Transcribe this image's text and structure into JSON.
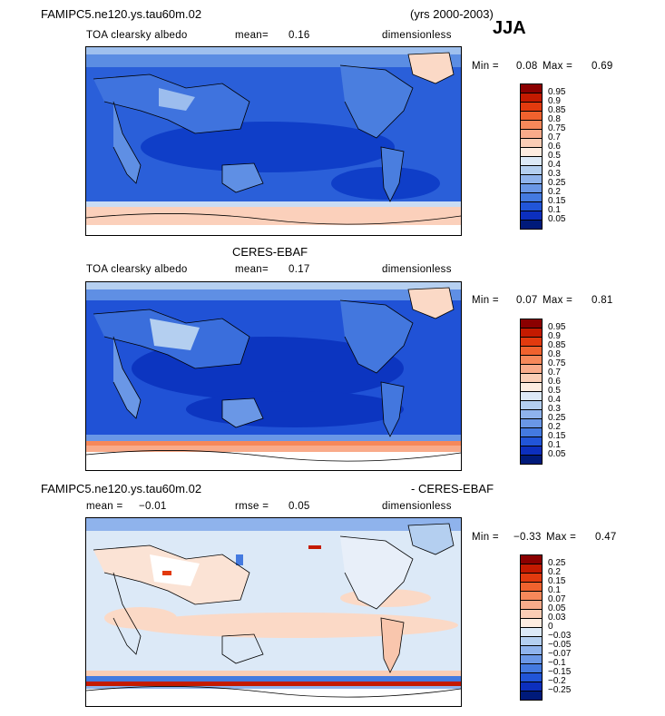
{
  "header": {
    "case_name": "FAMIPC5.ne120.ys.tau60m.02",
    "years": "(yrs 2000-2003)",
    "season": "JJA"
  },
  "panels": [
    {
      "title_center": "",
      "variable": "TOA clearsky albedo",
      "stat1_label": "mean=",
      "stat1_value": "0.16",
      "stat2_label": "",
      "stat2_value": "",
      "units": "dimensionless",
      "min_label": "Min =",
      "min_value": "0.08",
      "max_label": "Max =",
      "max_value": "0.69",
      "levels": [
        "0.95",
        "0.9",
        "0.85",
        "0.8",
        "0.75",
        "0.7",
        "0.6",
        "0.5",
        "0.4",
        "0.3",
        "0.25",
        "0.2",
        "0.15",
        "0.1",
        "0.05"
      ],
      "colors": [
        "#8b0000",
        "#c41a00",
        "#e23a0e",
        "#f0622e",
        "#f6885a",
        "#f9ab8a",
        "#fbcdb5",
        "#feece0",
        "#dce9f7",
        "#b4cff0",
        "#8fb3ec",
        "#6a97e6",
        "#447ae0",
        "#2155d8",
        "#0c2fbe",
        "#001a7a"
      ]
    },
    {
      "title_center": "CERES-EBAF",
      "variable": "TOA clearsky albedo",
      "stat1_label": "mean=",
      "stat1_value": "0.17",
      "stat2_label": "",
      "stat2_value": "",
      "units": "dimensionless",
      "min_label": "Min =",
      "min_value": "0.07",
      "max_label": "Max =",
      "max_value": "0.81",
      "levels": [
        "0.95",
        "0.9",
        "0.85",
        "0.8",
        "0.75",
        "0.7",
        "0.6",
        "0.5",
        "0.4",
        "0.3",
        "0.25",
        "0.2",
        "0.15",
        "0.1",
        "0.05"
      ],
      "colors": [
        "#8b0000",
        "#c41a00",
        "#e23a0e",
        "#f0622e",
        "#f6885a",
        "#f9ab8a",
        "#fbcdb5",
        "#feece0",
        "#dce9f7",
        "#b4cff0",
        "#8fb3ec",
        "#6a97e6",
        "#447ae0",
        "#2155d8",
        "#0c2fbe",
        "#001a7a"
      ]
    },
    {
      "title_left": "FAMIPC5.ne120.ys.tau60m.02",
      "title_right": "- CERES-EBAF",
      "variable": "",
      "stat1_label": "mean =",
      "stat1_value": "−0.01",
      "stat2_label": "rmse =",
      "stat2_value": "0.05",
      "units": "dimensionless",
      "min_label": "Min =",
      "min_value": "−0.33",
      "max_label": "Max =",
      "max_value": "0.47",
      "levels": [
        "0.25",
        "0.2",
        "0.15",
        "0.1",
        "0.07",
        "0.05",
        "0.03",
        "0",
        "−0.03",
        "−0.05",
        "−0.07",
        "−0.1",
        "−0.15",
        "−0.2",
        "−0.25"
      ],
      "colors": [
        "#8b0000",
        "#c41a00",
        "#e23a0e",
        "#f0622e",
        "#f6885a",
        "#f9ab8a",
        "#fbcdb5",
        "#feece0",
        "#dce9f7",
        "#b4cff0",
        "#8fb3ec",
        "#6a97e6",
        "#447ae0",
        "#2155d8",
        "#0c2fbe",
        "#001a7a"
      ]
    }
  ]
}
